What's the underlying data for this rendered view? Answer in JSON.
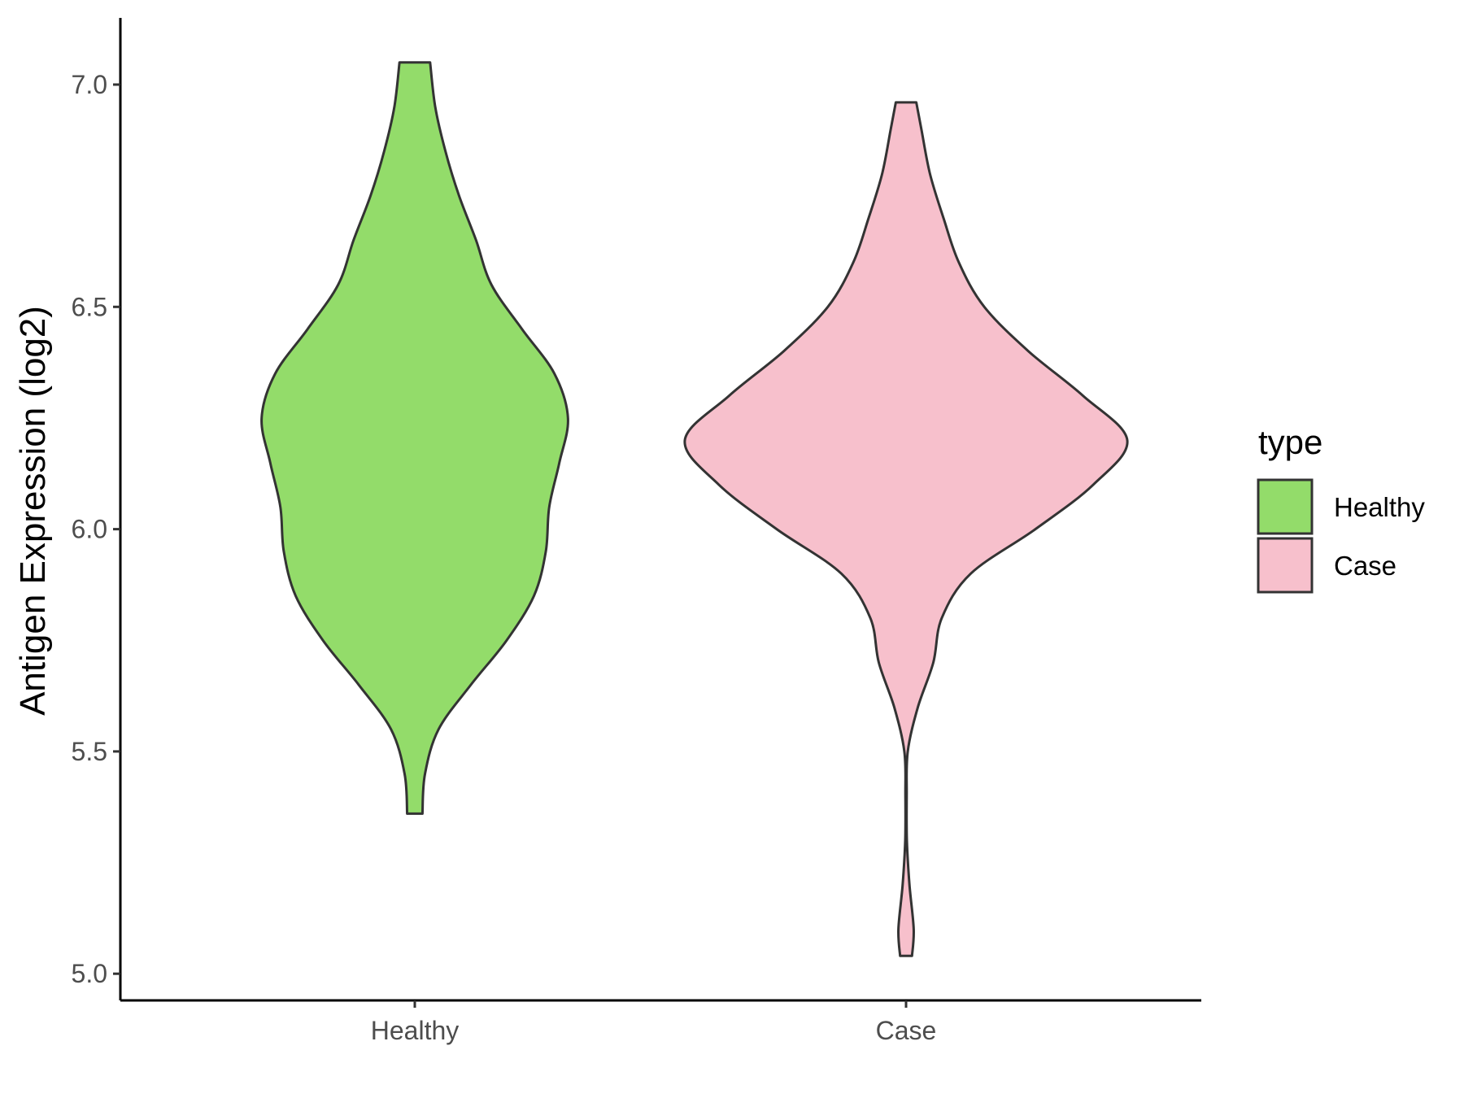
{
  "chart_data": {
    "type": "violin",
    "ylabel": "Antigen Expression (log2)",
    "xlabel": "",
    "categories": [
      "Healthy",
      "Case"
    ],
    "ylim": [
      4.94,
      7.15
    ],
    "yticks": [
      {
        "value": 5.0,
        "label": "5.0"
      },
      {
        "value": 5.5,
        "label": "5.5"
      },
      {
        "value": 6.0,
        "label": "6.0"
      },
      {
        "value": 6.5,
        "label": "6.5"
      },
      {
        "value": 7.0,
        "label": "7.0"
      }
    ],
    "grid": false,
    "legend": {
      "title": "type",
      "placement": "right",
      "entries": [
        {
          "label": "Healthy",
          "color": "#93dc6a"
        },
        {
          "label": "Case",
          "color": "#f7c0cc"
        }
      ]
    },
    "series": [
      {
        "name": "Healthy",
        "color": "#93dc6a",
        "min": 5.36,
        "max": 7.05,
        "density_profile": [
          [
            5.36,
            0.045
          ],
          [
            5.45,
            0.06
          ],
          [
            5.55,
            0.14
          ],
          [
            5.65,
            0.33
          ],
          [
            5.75,
            0.54
          ],
          [
            5.85,
            0.7
          ],
          [
            5.95,
            0.77
          ],
          [
            6.05,
            0.79
          ],
          [
            6.15,
            0.85
          ],
          [
            6.25,
            0.9
          ],
          [
            6.35,
            0.82
          ],
          [
            6.45,
            0.63
          ],
          [
            6.55,
            0.45
          ],
          [
            6.65,
            0.36
          ],
          [
            6.75,
            0.26
          ],
          [
            6.85,
            0.18
          ],
          [
            6.95,
            0.12
          ],
          [
            7.05,
            0.09
          ]
        ]
      },
      {
        "name": "Case",
        "color": "#f7c0cc",
        "min": 5.04,
        "max": 6.96,
        "density_profile": [
          [
            5.04,
            0.035
          ],
          [
            5.1,
            0.045
          ],
          [
            5.2,
            0.02
          ],
          [
            5.3,
            0.005
          ],
          [
            5.4,
            0.004
          ],
          [
            5.5,
            0.01
          ],
          [
            5.6,
            0.07
          ],
          [
            5.7,
            0.16
          ],
          [
            5.8,
            0.21
          ],
          [
            5.9,
            0.38
          ],
          [
            6.0,
            0.76
          ],
          [
            6.1,
            1.1
          ],
          [
            6.2,
            1.3
          ],
          [
            6.3,
            1.04
          ],
          [
            6.4,
            0.72
          ],
          [
            6.5,
            0.46
          ],
          [
            6.6,
            0.31
          ],
          [
            6.7,
            0.22
          ],
          [
            6.8,
            0.14
          ],
          [
            6.9,
            0.09
          ],
          [
            6.96,
            0.06
          ]
        ]
      }
    ]
  }
}
